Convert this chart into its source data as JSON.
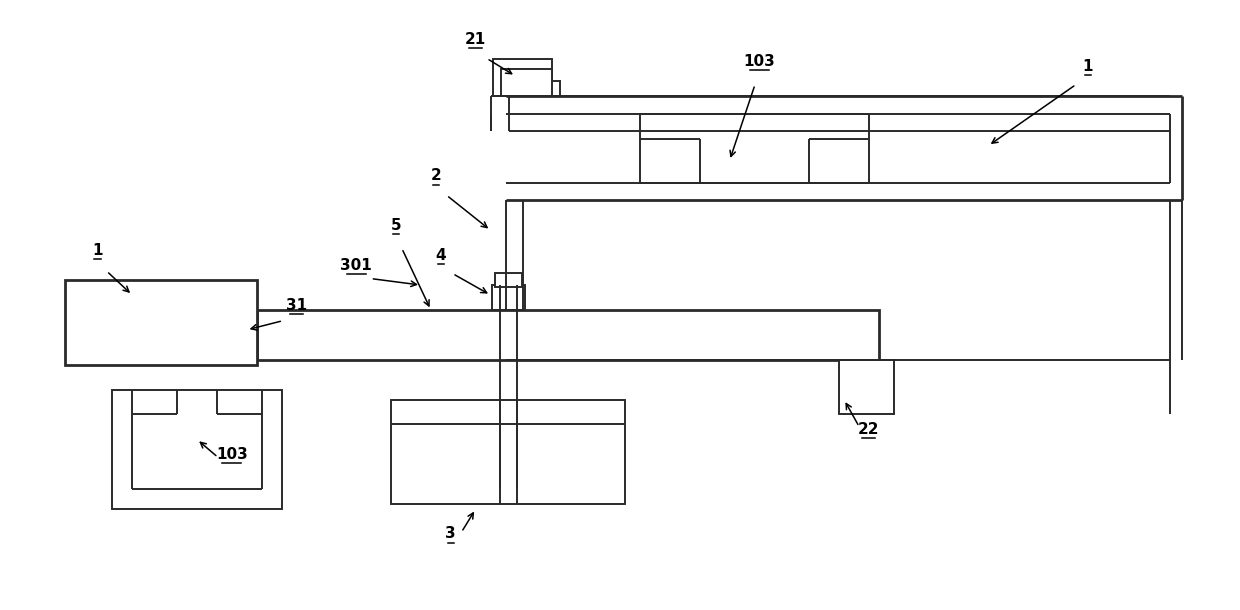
{
  "bg_color": "#ffffff",
  "line_color": "#2a2a2a",
  "lw": 1.4,
  "lw_thick": 2.0
}
